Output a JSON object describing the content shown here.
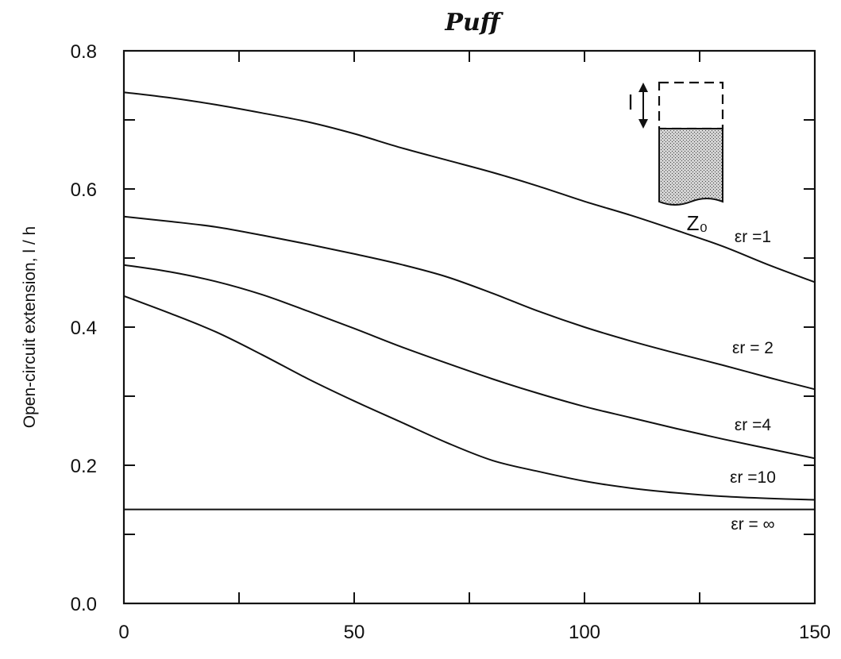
{
  "header": {
    "title": "Puff"
  },
  "chart_data": {
    "type": "line",
    "title": "Puff",
    "xlabel": "",
    "ylabel": "Open-circuit extension, l / h",
    "xlim": [
      0,
      150
    ],
    "ylim": [
      0.0,
      0.8
    ],
    "x_ticks": [
      0,
      25,
      50,
      75,
      100,
      125,
      150
    ],
    "x_tick_labels": [
      "0",
      "",
      "50",
      "",
      "100",
      "",
      "150"
    ],
    "y_ticks": [
      0.0,
      0.1,
      0.2,
      0.3,
      0.4,
      0.5,
      0.6,
      0.7,
      0.8
    ],
    "y_tick_labels": [
      "0.0",
      "",
      "0.2",
      "",
      "0.4",
      "",
      "0.6",
      "",
      "0.8"
    ],
    "grid": false,
    "series": [
      {
        "label": "εr =1",
        "x": [
          0,
          10,
          20,
          30,
          40,
          50,
          60,
          70,
          80,
          90,
          100,
          110,
          120,
          130,
          140,
          150
        ],
        "y": [
          0.74,
          0.732,
          0.722,
          0.71,
          0.697,
          0.68,
          0.66,
          0.642,
          0.624,
          0.604,
          0.582,
          0.562,
          0.54,
          0.517,
          0.49,
          0.465
        ]
      },
      {
        "label": "εr = 2",
        "x": [
          0,
          10,
          20,
          30,
          40,
          50,
          60,
          70,
          80,
          90,
          100,
          110,
          120,
          130,
          140,
          150
        ],
        "y": [
          0.56,
          0.553,
          0.545,
          0.533,
          0.52,
          0.506,
          0.491,
          0.473,
          0.449,
          0.423,
          0.4,
          0.38,
          0.362,
          0.345,
          0.327,
          0.31
        ]
      },
      {
        "label": "εr =4",
        "x": [
          0,
          10,
          20,
          30,
          40,
          50,
          60,
          70,
          80,
          90,
          100,
          110,
          120,
          130,
          140,
          150
        ],
        "y": [
          0.49,
          0.48,
          0.466,
          0.447,
          0.423,
          0.398,
          0.372,
          0.348,
          0.325,
          0.304,
          0.285,
          0.269,
          0.253,
          0.238,
          0.224,
          0.21
        ]
      },
      {
        "label": "εr =10",
        "x": [
          0,
          10,
          20,
          30,
          40,
          50,
          60,
          70,
          80,
          90,
          100,
          110,
          120,
          130,
          140,
          150
        ],
        "y": [
          0.445,
          0.42,
          0.393,
          0.36,
          0.325,
          0.293,
          0.263,
          0.233,
          0.207,
          0.191,
          0.177,
          0.167,
          0.16,
          0.155,
          0.152,
          0.15
        ]
      },
      {
        "label": "εr = ∞",
        "x": [
          0,
          150
        ],
        "y": [
          0.136,
          0.136
        ]
      }
    ],
    "inset": {
      "length_label": "l",
      "impedance_label": "Z₀"
    }
  }
}
